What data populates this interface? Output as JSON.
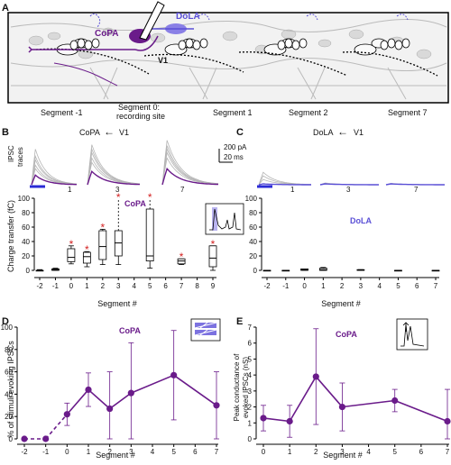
{
  "panel_letters": {
    "a": "A",
    "b": "B",
    "c": "C",
    "d": "D",
    "e": "E"
  },
  "panel_a": {
    "labels": {
      "copa": "CoPA",
      "dola": "DoLA",
      "v1": "V1"
    },
    "segments": [
      "Segment -1",
      "Segment 0:",
      "recording site",
      "Segment 1",
      "Segment 2",
      "Segment 7"
    ],
    "colors": {
      "copa": "#6a1b8a",
      "dola": "#5a4fd6",
      "outline": "#000000"
    }
  },
  "panel_b": {
    "title_left": "CoPA",
    "arrow": "←",
    "title_right": "V1",
    "iPSC_label_1": "IPSC",
    "iPSC_label_2": "traces",
    "scalebar_1": "200 pA",
    "scalebar_2": "20 ms",
    "trace_segments": [
      "1",
      "3",
      "7"
    ],
    "box_label": "CoPA",
    "ylabel": "Charge transfer (fC)",
    "xlabel": "Segment #",
    "yticks": [
      "0",
      "20",
      "40",
      "60",
      "80",
      "100"
    ],
    "xticks": [
      "-2",
      "-1",
      "0",
      "1",
      "2",
      "3",
      "4",
      "5",
      "6",
      "7",
      "8",
      "9"
    ],
    "star": "*"
  },
  "panel_c": {
    "title_left": "DoLA",
    "arrow": "←",
    "title_right": "V1",
    "trace_segments": [
      "1",
      "3",
      "7"
    ],
    "box_label": "DoLA",
    "xlabel": "Segment #",
    "yticks": [
      "0",
      "20",
      "40",
      "60",
      "80",
      "100"
    ],
    "xticks": [
      "-2",
      "-1",
      "0",
      "1",
      "2",
      "3",
      "4",
      "5",
      "6",
      "7"
    ]
  },
  "chart_data": [
    {
      "type": "box",
      "panel": "B",
      "ylabel": "Charge transfer (fC)",
      "xlabel": "Segment #",
      "ylim": [
        0,
        100
      ],
      "boxes": [
        {
          "x": -2,
          "whislo": 0,
          "q1": 0,
          "med": 0,
          "q3": 0,
          "whishi": 1,
          "significant": false
        },
        {
          "x": -1,
          "whislo": 0,
          "q1": 0,
          "med": 1,
          "q3": 2,
          "whishi": 3,
          "significant": false
        },
        {
          "x": 0,
          "whislo": 9,
          "q1": 12,
          "med": 18,
          "q3": 30,
          "whishi": 34,
          "significant": true
        },
        {
          "x": 1,
          "whislo": 5,
          "q1": 10,
          "med": 19,
          "q3": 25,
          "whishi": 26,
          "significant": true
        },
        {
          "x": 2,
          "whislo": 8,
          "q1": 15,
          "med": 33,
          "q3": 55,
          "whishi": 57,
          "significant": true
        },
        {
          "x": 3,
          "whislo": 8,
          "q1": 20,
          "med": 38,
          "q3": 55,
          "whishi": 100,
          "significant": true
        },
        {
          "x": 5,
          "whislo": 3,
          "q1": 13,
          "med": 20,
          "q3": 85,
          "whishi": 100,
          "significant": true
        },
        {
          "x": 7,
          "whislo": 8,
          "q1": 9,
          "med": 13,
          "q3": 16,
          "whishi": 16,
          "significant": true
        },
        {
          "x": 9,
          "whislo": 0,
          "q1": 5,
          "med": 17,
          "q3": 34,
          "whishi": 34,
          "significant": true
        }
      ]
    },
    {
      "type": "box",
      "panel": "C",
      "xlabel": "Segment #",
      "ylim": [
        0,
        100
      ],
      "boxes": [
        {
          "x": -2,
          "whislo": 0,
          "q1": 0,
          "med": 0,
          "q3": 0,
          "whishi": 0
        },
        {
          "x": -1,
          "whislo": 0,
          "q1": 0,
          "med": 0,
          "q3": 0,
          "whishi": 0
        },
        {
          "x": 0,
          "whislo": 0,
          "q1": 0,
          "med": 1,
          "q3": 2,
          "whishi": 2
        },
        {
          "x": 1,
          "whislo": 0,
          "q1": 0,
          "med": 1,
          "q3": 3,
          "whishi": 4
        },
        {
          "x": 3,
          "whislo": 0,
          "q1": 0,
          "med": 0,
          "q3": 1,
          "whishi": 1
        },
        {
          "x": 5,
          "whislo": 0,
          "q1": 0,
          "med": 0,
          "q3": 0,
          "whishi": 0
        },
        {
          "x": 7,
          "whislo": 0,
          "q1": 0,
          "med": 0,
          "q3": 0,
          "whishi": 0
        }
      ]
    },
    {
      "type": "line",
      "panel": "D",
      "title": "CoPA",
      "ylabel": "% of stimuli evoking IPSCs",
      "xlabel": "Segment #",
      "ylim": [
        0,
        100
      ],
      "x": [
        -2,
        -1,
        0,
        1,
        2,
        3,
        5,
        7
      ],
      "y": [
        0,
        0,
        22,
        44,
        27,
        41,
        57,
        30
      ],
      "err": [
        0,
        0,
        10,
        15,
        33,
        45,
        40,
        30
      ],
      "color": "#6a1b8a"
    },
    {
      "type": "line",
      "panel": "E",
      "title": "CoPA",
      "ylabel": "Peak conductance of evoked IPSCs (nS)",
      "xlabel": "Segment #",
      "ylim": [
        0,
        7
      ],
      "x": [
        0,
        1,
        2,
        3,
        5,
        7
      ],
      "y": [
        1.3,
        1.1,
        3.9,
        2.0,
        2.4,
        1.1
      ],
      "err": [
        0.8,
        1.0,
        3.0,
        1.5,
        0.7,
        2.0
      ],
      "color": "#6a1b8a"
    }
  ],
  "panel_d": {
    "title": "CoPA",
    "ylabel": "% of stimuli evoking IPSCs",
    "xlabel": "Segment #",
    "yticks": [
      "0",
      "20",
      "40",
      "60",
      "80",
      "100"
    ],
    "xticks": [
      "-2",
      "-1",
      "0",
      "1",
      "2",
      "3",
      "4",
      "5",
      "6",
      "7"
    ]
  },
  "panel_e": {
    "title": "CoPA",
    "ylabel_1": "Peak conductance of",
    "ylabel_2": "evoked IPSCs (nS)",
    "xlabel": "Segment #",
    "yticks": [
      "0",
      "1",
      "2",
      "3",
      "4",
      "5",
      "6",
      "7"
    ],
    "xticks": [
      "0",
      "1",
      "2",
      "3",
      "4",
      "5",
      "6",
      "7"
    ]
  }
}
